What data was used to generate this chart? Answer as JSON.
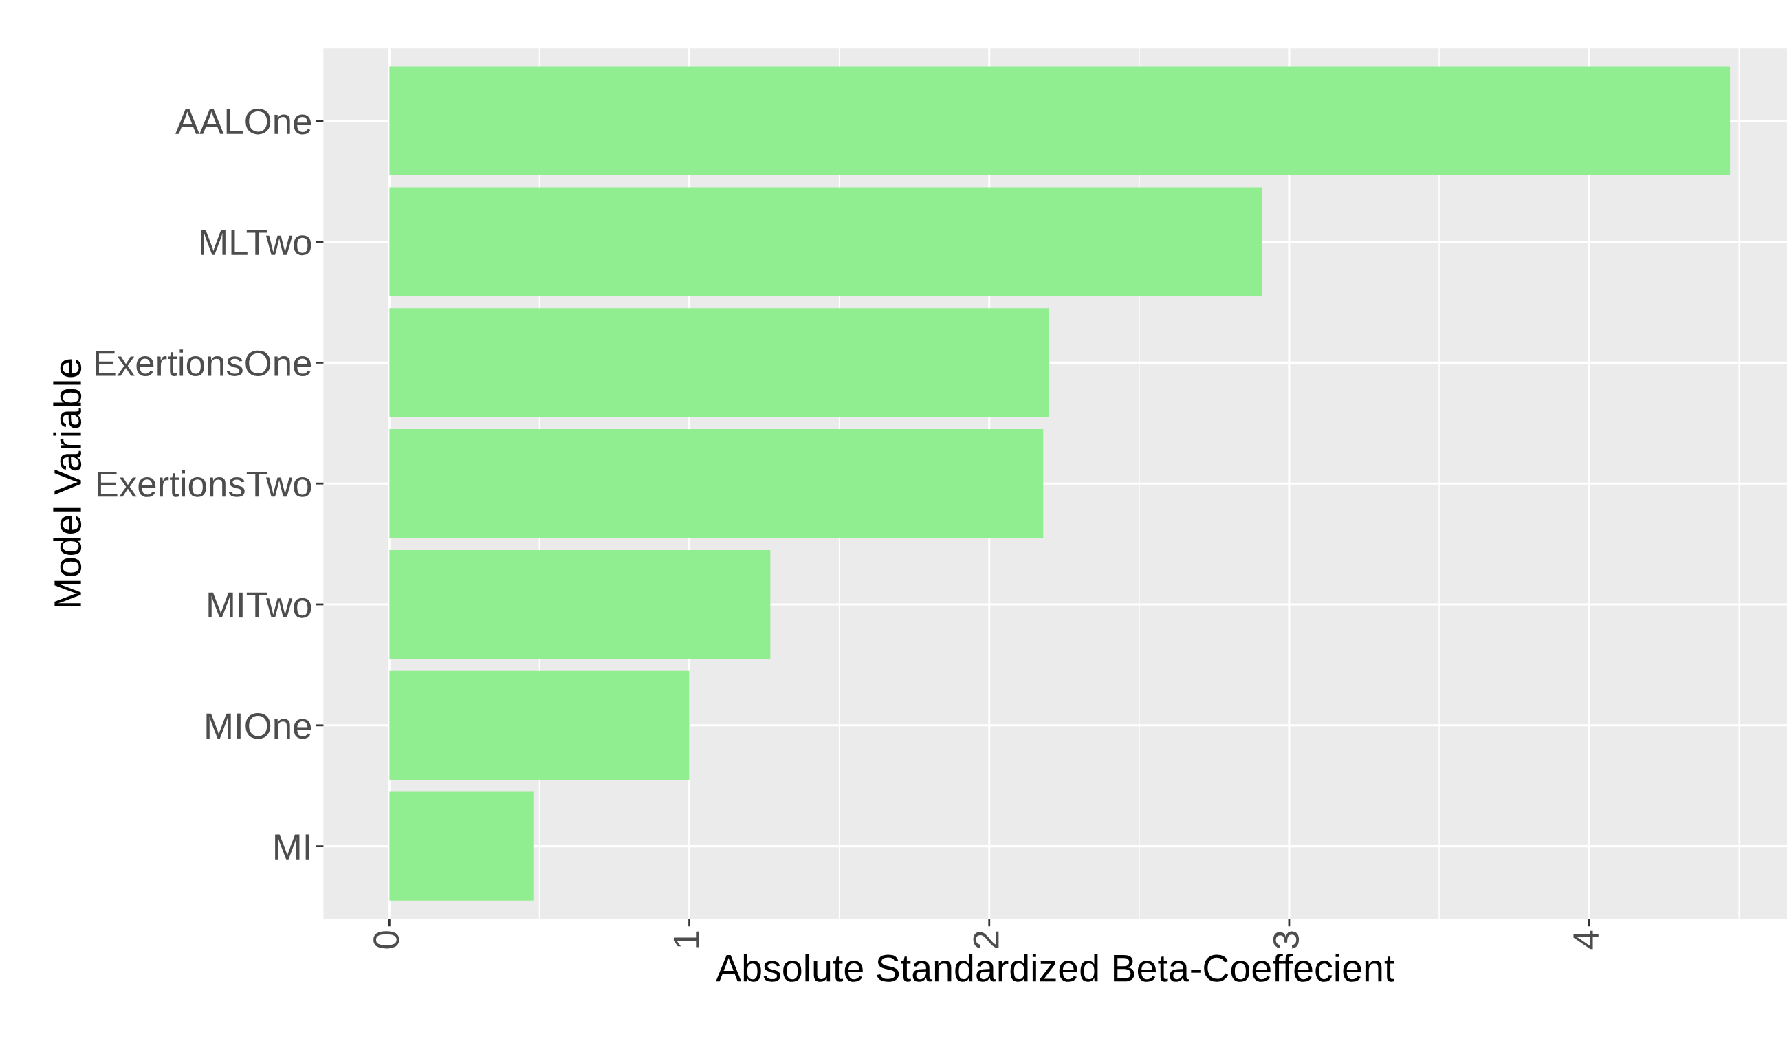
{
  "chart_data": {
    "type": "bar",
    "orientation": "horizontal",
    "categories": [
      "AALOne",
      "MLTwo",
      "ExertionsOne",
      "ExertionsTwo",
      "MITwo",
      "MIOne",
      "MI"
    ],
    "values": [
      4.47,
      2.91,
      2.2,
      2.18,
      1.27,
      1.0,
      0.48
    ],
    "color": "#90ee90",
    "xlim": [
      -0.22,
      4.66
    ],
    "xticks": [
      0,
      1,
      2,
      3,
      4
    ],
    "xlabel": "Absolute Standardized Beta-Coeffecient",
    "ylabel": "Model Variable",
    "grid": true
  }
}
